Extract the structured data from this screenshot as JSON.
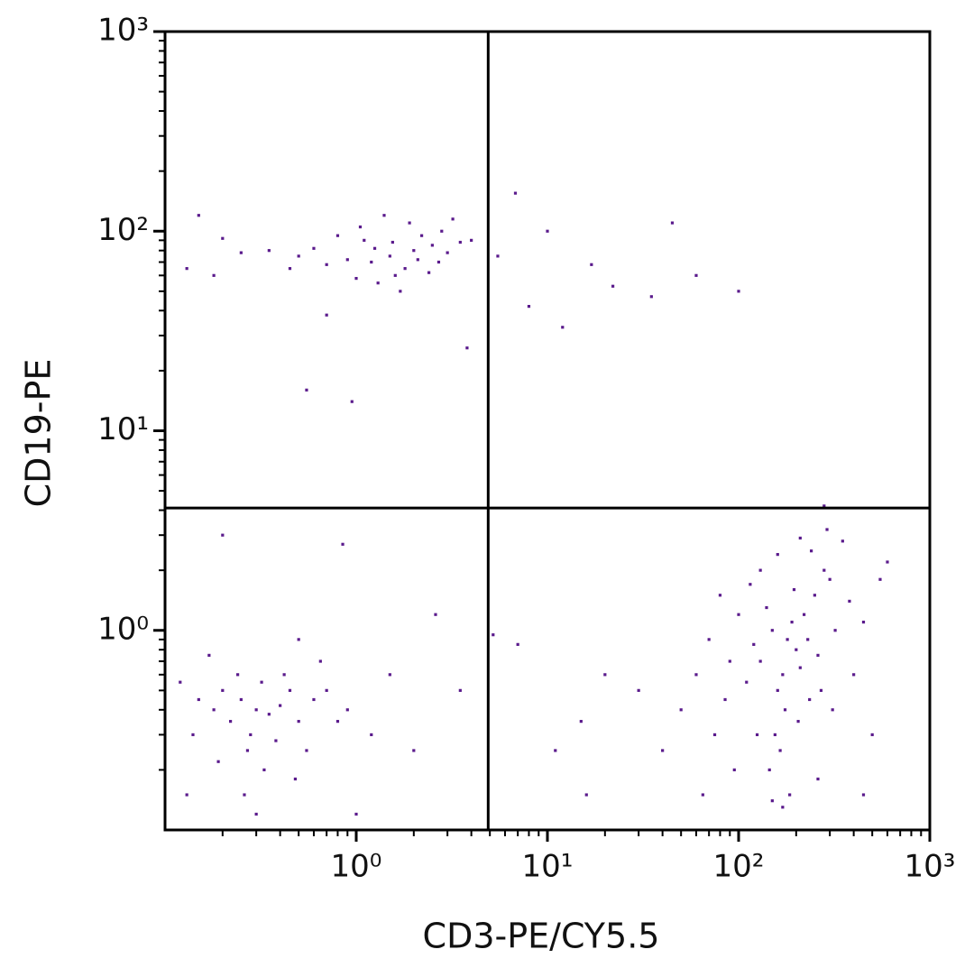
{
  "chart_data": {
    "type": "scatter",
    "x_label": "CD3-PE/CY5.5",
    "y_label": "CD19-PE",
    "log_x": true,
    "log_y": true,
    "xlim": [
      0.1,
      1000
    ],
    "ylim": [
      0.1,
      1000
    ],
    "xticks": [
      {
        "value": 1,
        "label": "10⁰"
      },
      {
        "value": 10,
        "label": "10¹"
      },
      {
        "value": 100,
        "label": "10²"
      },
      {
        "value": 1000,
        "label": "10³"
      }
    ],
    "yticks": [
      {
        "value": 1,
        "label": "10⁰"
      },
      {
        "value": 10,
        "label": "10¹"
      },
      {
        "value": 100,
        "label": "10²"
      },
      {
        "value": 1000,
        "label": "10³"
      }
    ],
    "quadrant_x": 4.9,
    "quadrant_y": 4.1,
    "color": "#5a1a8c",
    "x": [
      1.5,
      1.2,
      2.0,
      1.8,
      0.9,
      2.5,
      1.1,
      1.6,
      3.0,
      0.7,
      2.2,
      1.3,
      0.6,
      1.9,
      2.8,
      1.0,
      3.5,
      0.5,
      1.4,
      2.4,
      0.8,
      1.7,
      3.2,
      1.25,
      2.1,
      0.45,
      4.0,
      1.05,
      1.55,
      2.7,
      0.35,
      0.25,
      0.18,
      0.13,
      0.2,
      0.15,
      3.8,
      0.55,
      0.95,
      0.7,
      6.8,
      12,
      45,
      100,
      60,
      35,
      22,
      17,
      10,
      8,
      5.5,
      0.3,
      0.25,
      0.35,
      0.2,
      0.4,
      0.28,
      0.22,
      0.45,
      0.5,
      0.18,
      0.32,
      0.38,
      0.15,
      0.6,
      0.27,
      0.42,
      0.14,
      0.55,
      0.7,
      0.33,
      0.24,
      0.19,
      0.8,
      0.12,
      0.65,
      0.9,
      0.48,
      0.26,
      1.2,
      1.5,
      2.0,
      0.17,
      0.5,
      0.2,
      0.85,
      2.6,
      3.5,
      1.0,
      0.3,
      0.13,
      180,
      150,
      200,
      220,
      170,
      130,
      250,
      190,
      160,
      140,
      210,
      230,
      120,
      280,
      300,
      175,
      110,
      260,
      195,
      155,
      240,
      320,
      100,
      90,
      85,
      350,
      165,
      205,
      145,
      185,
      125,
      270,
      380,
      400,
      80,
      70,
      60,
      75,
      95,
      450,
      500,
      600,
      130,
      160,
      210,
      290,
      115,
      235,
      310,
      170,
      150,
      50,
      40,
      65,
      30,
      20,
      15,
      11,
      7,
      5.2,
      16,
      280,
      450,
      550,
      260
    ],
    "values": [
      75,
      70,
      80,
      65,
      72,
      85,
      90,
      60,
      78,
      68,
      95,
      55,
      82,
      110,
      100,
      58,
      88,
      75,
      120,
      62,
      95,
      50,
      115,
      82,
      72,
      65,
      90,
      105,
      88,
      70,
      80,
      78,
      60,
      65,
      92,
      120,
      26,
      16,
      14,
      38,
      155,
      33,
      110,
      50,
      60,
      47,
      53,
      68,
      100,
      42,
      75,
      0.4,
      0.45,
      0.38,
      0.5,
      0.42,
      0.3,
      0.35,
      0.5,
      0.35,
      0.4,
      0.55,
      0.28,
      0.45,
      0.45,
      0.25,
      0.6,
      0.3,
      0.25,
      0.5,
      0.2,
      0.6,
      0.22,
      0.35,
      0.55,
      0.7,
      0.4,
      0.18,
      0.15,
      0.3,
      0.6,
      0.25,
      0.75,
      0.9,
      3.0,
      2.7,
      1.2,
      0.5,
      0.12,
      0.12,
      0.15,
      0.9,
      1.0,
      0.8,
      1.2,
      0.6,
      0.7,
      1.5,
      1.1,
      0.5,
      1.3,
      0.65,
      0.9,
      0.85,
      2.0,
      1.8,
      0.4,
      0.55,
      0.75,
      1.6,
      0.3,
      2.5,
      1.0,
      1.2,
      0.7,
      0.45,
      2.8,
      0.25,
      0.35,
      0.2,
      0.15,
      0.3,
      0.5,
      1.4,
      0.6,
      1.5,
      0.9,
      0.6,
      0.3,
      0.2,
      1.1,
      0.3,
      2.2,
      2.0,
      2.4,
      2.9,
      3.2,
      1.7,
      0.45,
      0.4,
      0.13,
      0.14,
      0.4,
      0.25,
      0.15,
      0.5,
      0.6,
      0.35,
      0.25,
      0.85,
      0.95,
      0.15,
      4.2,
      0.15,
      1.8,
      0.18
    ]
  }
}
